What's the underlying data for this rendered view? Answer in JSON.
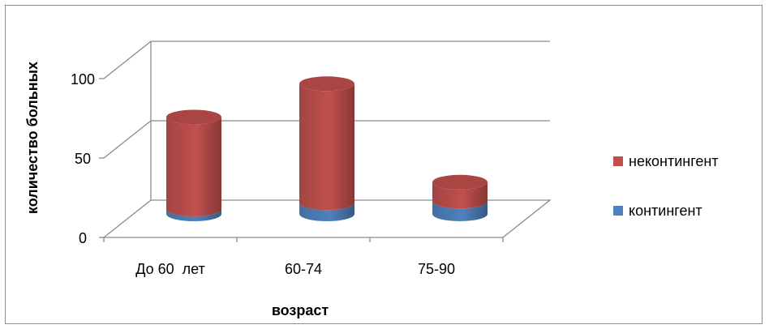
{
  "chart_data": {
    "type": "bar",
    "categories": [
      "До 60  лет",
      "60-74",
      "75-90"
    ],
    "series": [
      {
        "name": "контингент",
        "values": [
          3,
          7,
          8
        ],
        "color": "#4f81bd"
      },
      {
        "name": "неконтингент",
        "values": [
          58,
          75,
          12
        ],
        "color": "#c0504d"
      }
    ],
    "stacked": true,
    "ylim": [
      0,
      100
    ],
    "yticks": [
      0,
      50,
      100
    ],
    "xlabel": "возраст",
    "ylabel": "количество больных",
    "legend_position": "right",
    "grid": true
  }
}
